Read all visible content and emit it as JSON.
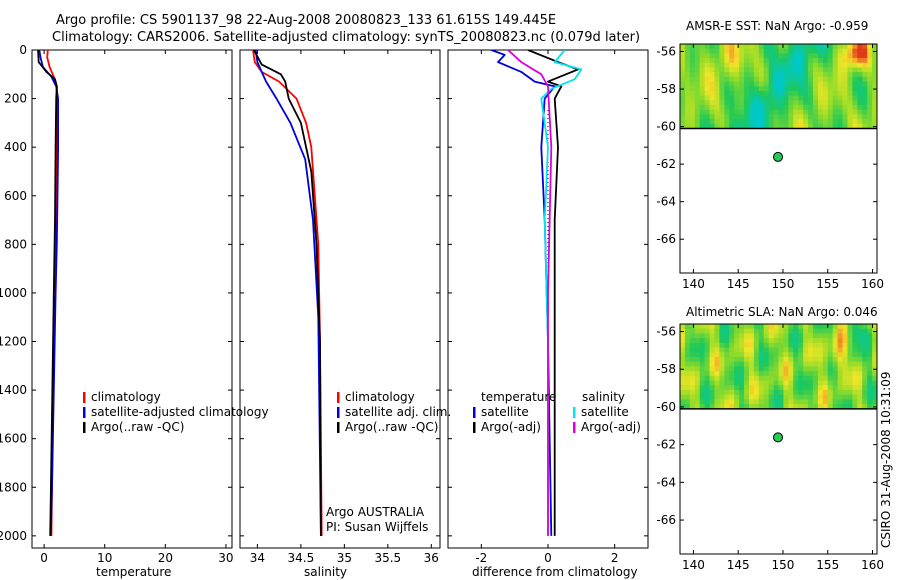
{
  "figure": {
    "title_line1": "Argo profile: CS 5901137_98 22-Aug-2008 20080823_133 61.615S 149.445E",
    "title_line2": "Climatology: CARS2006. Satellite-adjusted climatology: synTS_20080823.nc (0.079d later)",
    "side_stamp": "CSIRO 31-Aug-2008 10:31:09"
  },
  "colors": {
    "red": "#ff0000",
    "blue": "#0000dd",
    "black": "#000000",
    "cyan": "#00e5ee",
    "magenta": "#dd00dd",
    "marker": "#22cc55"
  },
  "chart_data": [
    {
      "type": "line",
      "name": "temperature",
      "xlabel": "temperature",
      "xlim": [
        -2,
        31
      ],
      "ylim": [
        2050,
        0
      ],
      "xticks": [
        0,
        10,
        20,
        30
      ],
      "yticks": [
        0,
        200,
        400,
        600,
        800,
        1000,
        1200,
        1400,
        1600,
        1800,
        2000
      ],
      "legend": [
        "climatology",
        "satellite-adjusted climatology",
        "Argo(..raw -QC)"
      ],
      "series": [
        {
          "name": "climatology",
          "color": "red",
          "x": [
            0.6,
            0.5,
            0.9,
            1.6,
            2.1,
            2.2,
            2.1,
            2.0,
            1.9,
            1.8,
            1.5,
            1.3,
            1.2
          ],
          "y": [
            0,
            30,
            70,
            110,
            150,
            200,
            400,
            600,
            800,
            1000,
            1400,
            1800,
            2000
          ]
        },
        {
          "name": "satellite-adjusted climatology",
          "color": "blue",
          "x": [
            -0.8,
            -0.6,
            -0.2,
            1.2,
            2.0,
            2.3,
            2.3,
            2.2,
            2.1,
            1.9,
            1.6,
            1.3,
            1.1
          ],
          "y": [
            0,
            30,
            70,
            110,
            150,
            200,
            400,
            600,
            800,
            1000,
            1400,
            1800,
            2000
          ]
        },
        {
          "name": "Argo(..raw -QC)",
          "color": "black",
          "x": [
            -1.0,
            -0.9,
            0.4,
            1.8,
            2.1,
            2.0,
            1.9,
            1.8,
            1.6,
            1.3,
            1.0
          ],
          "y": [
            0,
            50,
            90,
            120,
            150,
            200,
            400,
            700,
            1000,
            1500,
            2000
          ]
        }
      ]
    },
    {
      "type": "line",
      "name": "salinity",
      "xlabel": "salinity",
      "xlim": [
        33.8,
        36.1
      ],
      "ylim": [
        2050,
        0
      ],
      "xticks": [
        34,
        34.5,
        35,
        35.5,
        36
      ],
      "xticklabels": [
        "34",
        "34.5",
        "35",
        "35.5",
        "36"
      ],
      "legend": [
        "climatology",
        "satellite adj. clim.",
        "Argo(..raw -QC)"
      ],
      "annotation": [
        "Argo AUSTRALIA",
        "PI: Susan Wijffels"
      ],
      "series": [
        {
          "name": "climatology",
          "color": "red",
          "x": [
            33.95,
            33.97,
            34.05,
            34.25,
            34.45,
            34.56,
            34.62,
            34.66,
            34.7,
            34.72,
            34.74
          ],
          "y": [
            0,
            50,
            90,
            130,
            200,
            300,
            400,
            600,
            800,
            1200,
            2000
          ]
        },
        {
          "name": "satellite adj. clim.",
          "color": "blue",
          "x": [
            33.98,
            34.0,
            34.05,
            34.1,
            34.22,
            34.38,
            34.55,
            34.64,
            34.7,
            34.73
          ],
          "y": [
            0,
            50,
            90,
            130,
            200,
            300,
            450,
            700,
            1100,
            2000
          ]
        },
        {
          "name": "Argo(..raw -QC)",
          "color": "black",
          "x": [
            33.96,
            34.05,
            34.27,
            34.32,
            34.36,
            34.5,
            34.62,
            34.68,
            34.72,
            34.73
          ],
          "y": [
            0,
            60,
            100,
            130,
            200,
            300,
            500,
            800,
            1200,
            2000
          ]
        }
      ]
    },
    {
      "type": "line",
      "name": "difference",
      "xlabel": "difference from climatology",
      "xlim": [
        -3,
        3
      ],
      "ylim": [
        2050,
        0
      ],
      "xticks": [
        -2,
        0,
        2
      ],
      "legend_groups": [
        {
          "heading": "temperature",
          "items": [
            "satellite",
            "Argo(-adj)"
          ]
        },
        {
          "heading": "salinity",
          "items": [
            "satellite",
            "Argo(-adj)"
          ]
        }
      ],
      "series": [
        {
          "name": "temperature satellite",
          "color": "blue",
          "x": [
            -1.7,
            -1.3,
            -1.5,
            -0.8,
            -0.4,
            0.2,
            -0.1,
            -0.2,
            -0.1,
            0.0,
            0.1
          ],
          "y": [
            0,
            20,
            50,
            90,
            130,
            150,
            200,
            400,
            700,
            1200,
            2000
          ]
        },
        {
          "name": "temperature Argo(-adj)",
          "color": "black",
          "x": [
            -0.6,
            0.3,
            0.9,
            0.0,
            0.4,
            0.2,
            0.3,
            0.2,
            0.2,
            0.2
          ],
          "y": [
            0,
            50,
            80,
            130,
            150,
            200,
            400,
            700,
            1200,
            2000
          ]
        },
        {
          "name": "salinity satellite",
          "color": "cyan",
          "x": [
            0.5,
            0.2,
            1.0,
            0.8,
            0.1,
            -0.2,
            0.0,
            -0.1,
            0.0,
            0.0
          ],
          "y": [
            0,
            50,
            80,
            120,
            160,
            200,
            400,
            700,
            1200,
            2000
          ]
        },
        {
          "name": "salinity Argo(-adj)",
          "color": "magenta",
          "x": [
            -1.2,
            -0.8,
            -0.2,
            0.0,
            0.1,
            0.0,
            0.0
          ],
          "y": [
            0,
            50,
            100,
            150,
            400,
            1000,
            2000
          ]
        }
      ]
    },
    {
      "type": "heatmap",
      "name": "sst_map",
      "title": "AMSR-E SST: NaN Argo: -0.959",
      "xlim": [
        138.5,
        160.5
      ],
      "ylim": [
        -67.8,
        -55.6
      ],
      "xticks": [
        140,
        145,
        150,
        155,
        160
      ],
      "yticks": [
        -56,
        -58,
        -60,
        -62,
        -64,
        -66
      ],
      "data_ylim": [
        -60.1,
        -55.6
      ],
      "argo_point": [
        149.445,
        -61.615
      ]
    },
    {
      "type": "heatmap",
      "name": "sla_map",
      "title": "Altimetric SLA: NaN Argo: 0.046",
      "xlim": [
        138.5,
        160.5
      ],
      "ylim": [
        -67.8,
        -55.6
      ],
      "xticks": [
        140,
        145,
        150,
        155,
        160
      ],
      "yticks": [
        -56,
        -58,
        -60,
        -62,
        -64,
        -66
      ],
      "data_ylim": [
        -60.1,
        -55.6
      ],
      "argo_point": [
        149.445,
        -61.615
      ]
    }
  ]
}
